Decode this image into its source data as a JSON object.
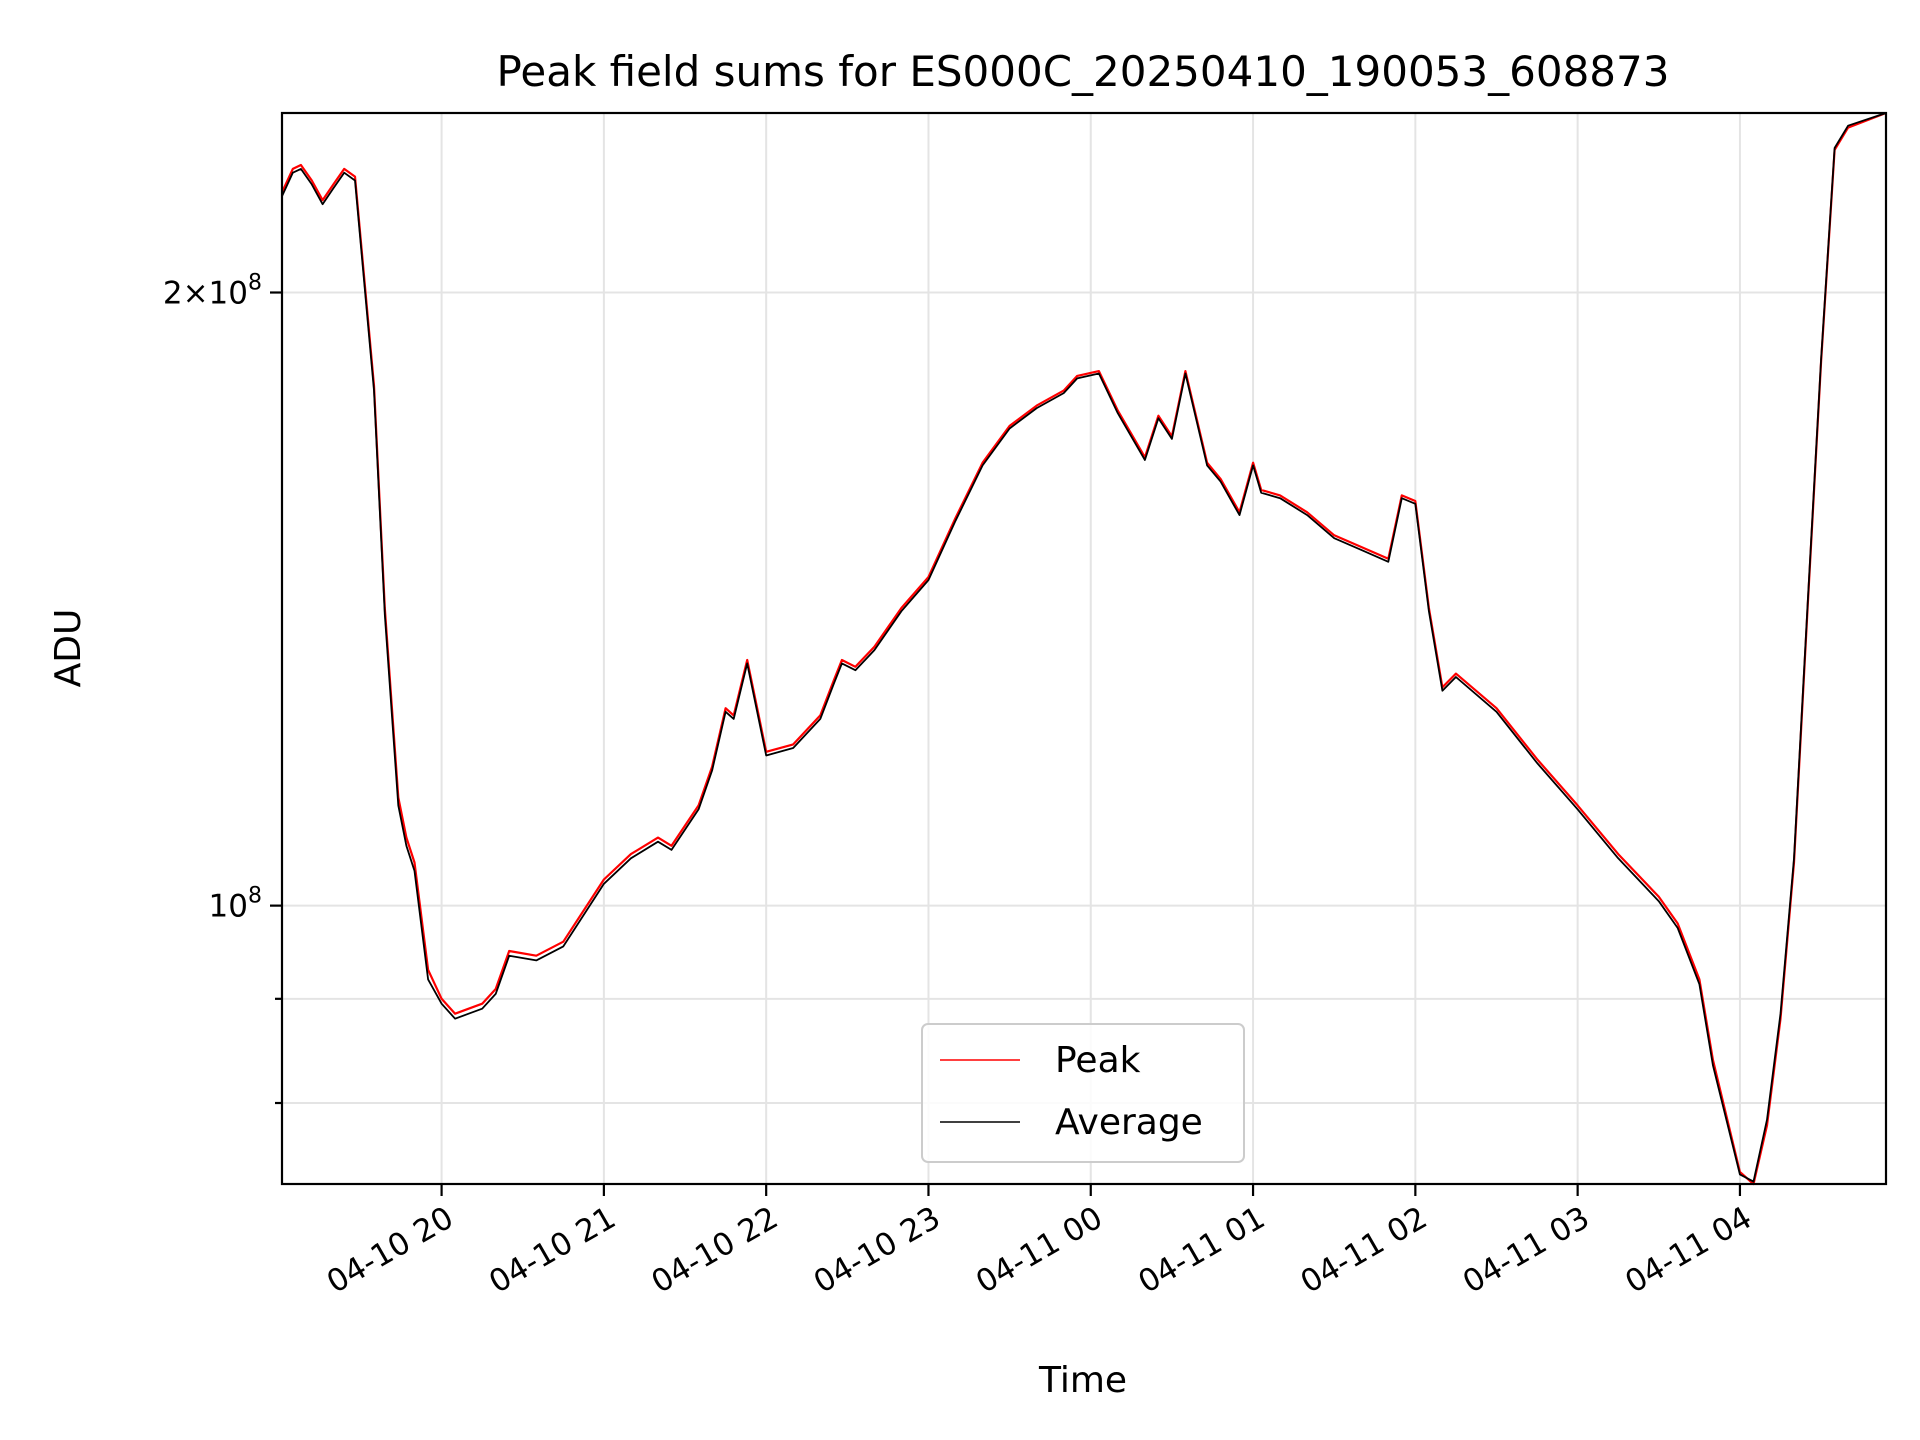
{
  "chart_data": {
    "type": "line",
    "title": "Peak field sums for ES000C_20250410_190053_608873",
    "xlabel": "Time",
    "ylabel": "ADU",
    "yscale": "log",
    "x_unit": "hours",
    "xlim": [
      "2025-04-10 19:01",
      "2025-04-11 04:54"
    ],
    "ylim": [
      73000000,
      245000000
    ],
    "grid": true,
    "legend_position": "lower-center",
    "x_ticks": [
      {
        "label": "04-10 20",
        "t": "2025-04-10 20:00"
      },
      {
        "label": "04-10 21",
        "t": "2025-04-10 21:00"
      },
      {
        "label": "04-10 22",
        "t": "2025-04-10 22:00"
      },
      {
        "label": "04-10 23",
        "t": "2025-04-10 23:00"
      },
      {
        "label": "04-11 00",
        "t": "2025-04-11 00:00"
      },
      {
        "label": "04-11 01",
        "t": "2025-04-11 01:00"
      },
      {
        "label": "04-11 02",
        "t": "2025-04-11 02:00"
      },
      {
        "label": "04-11 03",
        "t": "2025-04-11 03:00"
      },
      {
        "label": "04-11 04",
        "t": "2025-04-11 04:00"
      }
    ],
    "y_ticks_major": [
      {
        "value": 100000000,
        "base": "10",
        "exp": "8",
        "coef": ""
      },
      {
        "value": 200000000,
        "base": "10",
        "exp": "8",
        "coef": "2×"
      }
    ],
    "y_ticks_minor": [
      80000000,
      90000000
    ],
    "series": [
      {
        "name": "Peak",
        "color": "#ff0000",
        "t": [
          "2025-04-10 19:01",
          "2025-04-10 19:05",
          "2025-04-10 19:08",
          "2025-04-10 19:12",
          "2025-04-10 19:16",
          "2025-04-10 19:20",
          "2025-04-10 19:24",
          "2025-04-10 19:28",
          "2025-04-10 19:35",
          "2025-04-10 19:39",
          "2025-04-10 19:44",
          "2025-04-10 19:47",
          "2025-04-10 19:50",
          "2025-04-10 19:55",
          "2025-04-10 20:00",
          "2025-04-10 20:05",
          "2025-04-10 20:10",
          "2025-04-10 20:15",
          "2025-04-10 20:20",
          "2025-04-10 20:25",
          "2025-04-10 20:35",
          "2025-04-10 20:45",
          "2025-04-10 21:00",
          "2025-04-10 21:10",
          "2025-04-10 21:20",
          "2025-04-10 21:25",
          "2025-04-10 21:35",
          "2025-04-10 21:40",
          "2025-04-10 21:45",
          "2025-04-10 21:48",
          "2025-04-10 21:53",
          "2025-04-10 22:00",
          "2025-04-10 22:10",
          "2025-04-10 22:20",
          "2025-04-10 22:25",
          "2025-04-10 22:28",
          "2025-04-10 22:33",
          "2025-04-10 22:40",
          "2025-04-10 22:50",
          "2025-04-10 23:00",
          "2025-04-10 23:10",
          "2025-04-10 23:20",
          "2025-04-10 23:30",
          "2025-04-10 23:40",
          "2025-04-10 23:50",
          "2025-04-10 23:55",
          "2025-04-11 00:03",
          "2025-04-11 00:10",
          "2025-04-11 00:20",
          "2025-04-11 00:25",
          "2025-04-11 00:30",
          "2025-04-11 00:35",
          "2025-04-11 00:43",
          "2025-04-11 00:48",
          "2025-04-11 00:55",
          "2025-04-11 01:00",
          "2025-04-11 01:03",
          "2025-04-11 01:10",
          "2025-04-11 01:20",
          "2025-04-11 01:30",
          "2025-04-11 01:40",
          "2025-04-11 01:50",
          "2025-04-11 01:55",
          "2025-04-11 02:00",
          "2025-04-11 02:05",
          "2025-04-11 02:10",
          "2025-04-11 02:15",
          "2025-04-11 02:30",
          "2025-04-11 02:45",
          "2025-04-11 03:00",
          "2025-04-11 03:15",
          "2025-04-11 03:30",
          "2025-04-11 03:37",
          "2025-04-11 03:45",
          "2025-04-11 03:50",
          "2025-04-11 04:00",
          "2025-04-11 04:05",
          "2025-04-11 04:10",
          "2025-04-11 04:15",
          "2025-04-11 04:20",
          "2025-04-11 04:25",
          "2025-04-11 04:30",
          "2025-04-11 04:35",
          "2025-04-11 04:40",
          "2025-04-11 04:54"
        ],
        "values": [
          224000000,
          230000000,
          231000000,
          227000000,
          222000000,
          226000000,
          230000000,
          228000000,
          180000000,
          140000000,
          113000000,
          108000000,
          105000000,
          93000000,
          90000000,
          88500000,
          89000000,
          89500000,
          91000000,
          95000000,
          94500000,
          96000000,
          103000000,
          106000000,
          108000000,
          107000000,
          112000000,
          117000000,
          125000000,
          124000000,
          132000000,
          119000000,
          120000000,
          124000000,
          129000000,
          132000000,
          131000000,
          134000000,
          140000000,
          145000000,
          155000000,
          165000000,
          172000000,
          176000000,
          179000000,
          182000000,
          183000000,
          175000000,
          166000000,
          174000000,
          170000000,
          183000000,
          165000000,
          162000000,
          156000000,
          165000000,
          160000000,
          159000000,
          156000000,
          152000000,
          150000000,
          148000000,
          159000000,
          158000000,
          140000000,
          128000000,
          130000000,
          125000000,
          118000000,
          112000000,
          106000000,
          101000000,
          98000000,
          92000000,
          84000000,
          74000000,
          73000000,
          78000000,
          88000000,
          105000000,
          140000000,
          185000000,
          235000000,
          241000000,
          245000000
        ]
      },
      {
        "name": "Average",
        "color": "#000000",
        "t": [
          "2025-04-10 19:01",
          "2025-04-10 19:05",
          "2025-04-10 19:08",
          "2025-04-10 19:12",
          "2025-04-10 19:16",
          "2025-04-10 19:20",
          "2025-04-10 19:24",
          "2025-04-10 19:28",
          "2025-04-10 19:35",
          "2025-04-10 19:39",
          "2025-04-10 19:44",
          "2025-04-10 19:47",
          "2025-04-10 19:50",
          "2025-04-10 19:55",
          "2025-04-10 20:00",
          "2025-04-10 20:05",
          "2025-04-10 20:10",
          "2025-04-10 20:15",
          "2025-04-10 20:20",
          "2025-04-10 20:25",
          "2025-04-10 20:35",
          "2025-04-10 20:45",
          "2025-04-10 21:00",
          "2025-04-10 21:10",
          "2025-04-10 21:20",
          "2025-04-10 21:25",
          "2025-04-10 21:35",
          "2025-04-10 21:40",
          "2025-04-10 21:45",
          "2025-04-10 21:48",
          "2025-04-10 21:53",
          "2025-04-10 22:00",
          "2025-04-10 22:10",
          "2025-04-10 22:20",
          "2025-04-10 22:25",
          "2025-04-10 22:28",
          "2025-04-10 22:33",
          "2025-04-10 22:40",
          "2025-04-10 22:50",
          "2025-04-10 23:00",
          "2025-04-10 23:10",
          "2025-04-10 23:20",
          "2025-04-10 23:30",
          "2025-04-10 23:40",
          "2025-04-10 23:50",
          "2025-04-10 23:55",
          "2025-04-11 00:03",
          "2025-04-11 00:10",
          "2025-04-11 00:20",
          "2025-04-11 00:25",
          "2025-04-11 00:30",
          "2025-04-11 00:35",
          "2025-04-11 00:43",
          "2025-04-11 00:48",
          "2025-04-11 00:55",
          "2025-04-11 01:00",
          "2025-04-11 01:03",
          "2025-04-11 01:10",
          "2025-04-11 01:20",
          "2025-04-11 01:30",
          "2025-04-11 01:40",
          "2025-04-11 01:50",
          "2025-04-11 01:55",
          "2025-04-11 02:00",
          "2025-04-11 02:05",
          "2025-04-11 02:10",
          "2025-04-11 02:15",
          "2025-04-11 02:30",
          "2025-04-11 02:45",
          "2025-04-11 03:00",
          "2025-04-11 03:15",
          "2025-04-11 03:30",
          "2025-04-11 03:37",
          "2025-04-11 03:45",
          "2025-04-11 03:50",
          "2025-04-11 04:00",
          "2025-04-11 04:05",
          "2025-04-11 04:10",
          "2025-04-11 04:15",
          "2025-04-11 04:20",
          "2025-04-11 04:25",
          "2025-04-11 04:30",
          "2025-04-11 04:35",
          "2025-04-11 04:40",
          "2025-04-11 04:54"
        ],
        "values": [
          223000000,
          229000000,
          230000000,
          226000000,
          221000000,
          225000000,
          229000000,
          227000000,
          179000000,
          139000000,
          112000000,
          107000000,
          104000000,
          92000000,
          89500000,
          88000000,
          88500000,
          89000000,
          90500000,
          94500000,
          94000000,
          95500000,
          102500000,
          105500000,
          107500000,
          106500000,
          111500000,
          116500000,
          124500000,
          123500000,
          131500000,
          118500000,
          119500000,
          123500000,
          128500000,
          131500000,
          130500000,
          133500000,
          139500000,
          144500000,
          154500000,
          164500000,
          171500000,
          175500000,
          178500000,
          181500000,
          182500000,
          174500000,
          165500000,
          173500000,
          169500000,
          182500000,
          164500000,
          161500000,
          155500000,
          164500000,
          159500000,
          158500000,
          155500000,
          151500000,
          149500000,
          147500000,
          158500000,
          157500000,
          139500000,
          127500000,
          129500000,
          124500000,
          117500000,
          111500000,
          105500000,
          100500000,
          97500000,
          91500000,
          83500000,
          73800000,
          73200000,
          78500000,
          88500000,
          105500000,
          140500000,
          185500000,
          235500000,
          241500000,
          245000000
        ]
      }
    ]
  }
}
